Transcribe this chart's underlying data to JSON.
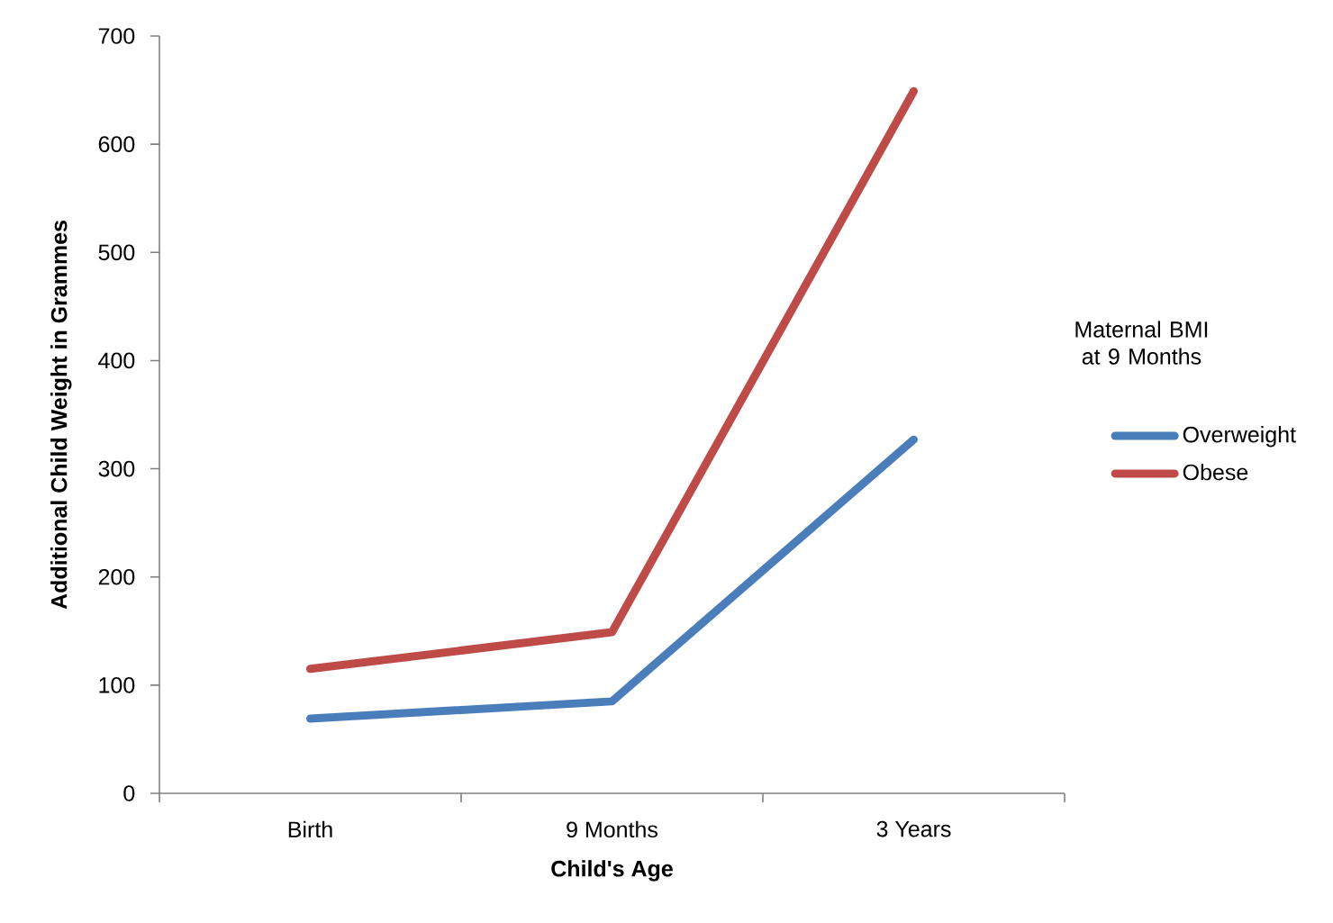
{
  "chart_data": {
    "type": "line",
    "xlabel": "Child's Age",
    "ylabel": "Additional Child Weight in Grammes",
    "legend_title": "Maternal BMI at 9 Months",
    "categories": [
      "Birth",
      "9 Months",
      "3 Years"
    ],
    "series": [
      {
        "name": "Overweight",
        "color": "#4a7ebb",
        "values": [
          69,
          85,
          327
        ]
      },
      {
        "name": "Obese",
        "color": "#be4b48",
        "values": [
          115,
          149,
          649
        ]
      }
    ],
    "ylim": [
      0,
      700
    ],
    "yticks": [
      0,
      100,
      200,
      300,
      400,
      500,
      600,
      700
    ],
    "legend": "right"
  }
}
